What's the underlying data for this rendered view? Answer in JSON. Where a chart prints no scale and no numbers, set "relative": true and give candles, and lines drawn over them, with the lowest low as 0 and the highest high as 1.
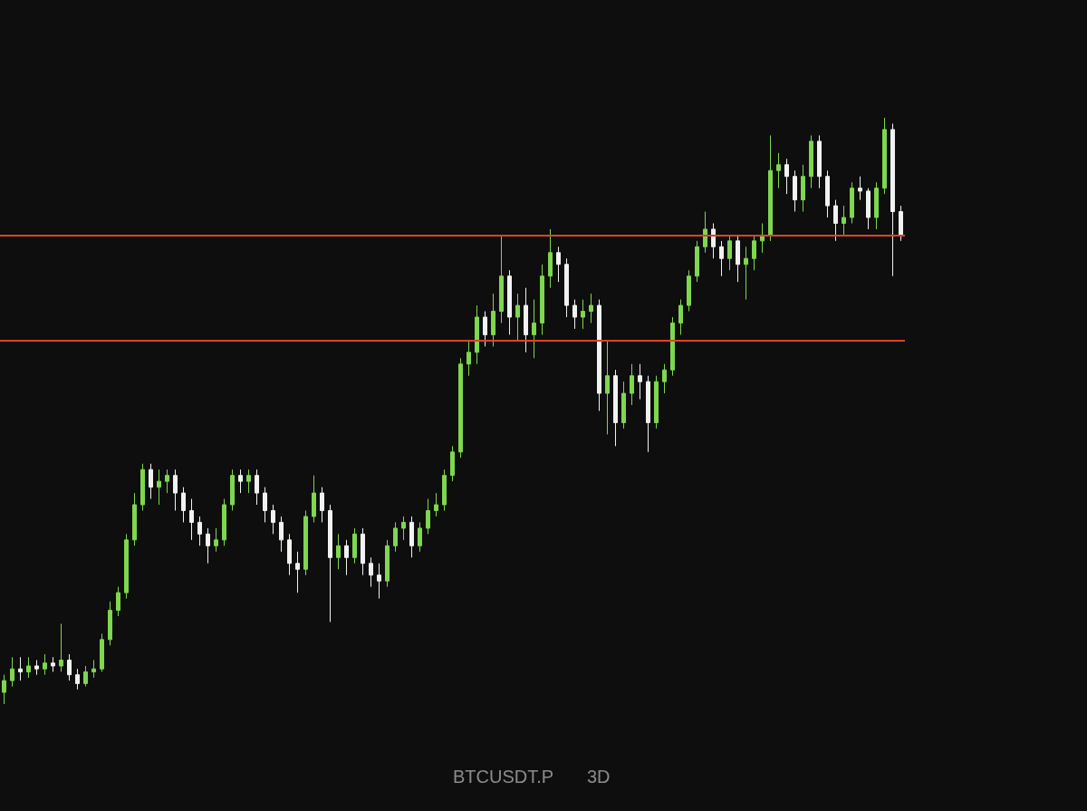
{
  "chart_data": {
    "type": "candlestick",
    "relative": true,
    "annotations": [
      "BTCUSDT.P",
      "3D"
    ],
    "categories": [
      null,
      null,
      null,
      null,
      null,
      null,
      null,
      null,
      null,
      null,
      null,
      null,
      null,
      null,
      null,
      null,
      null,
      null,
      null,
      null,
      null,
      null,
      null,
      null,
      null,
      null,
      null,
      null,
      null,
      null,
      null,
      null,
      null,
      null,
      null,
      null,
      null,
      null,
      null,
      null,
      null,
      null,
      null,
      null,
      null,
      null,
      null,
      null,
      null,
      null,
      null,
      null,
      null,
      null,
      null,
      null,
      null,
      null,
      null,
      null,
      null,
      null,
      null,
      null,
      null,
      null,
      null,
      null,
      null,
      null,
      null,
      null,
      null,
      null,
      null,
      null,
      null,
      null,
      null,
      null,
      null,
      null,
      null,
      null,
      null,
      null,
      null,
      null,
      null,
      null,
      null,
      null,
      null,
      null,
      null,
      null,
      null,
      null,
      null,
      null,
      null,
      null,
      null,
      null,
      null,
      null,
      null,
      null,
      null,
      null,
      null
    ],
    "ohlc": [
      [
        0.02,
        0.05,
        0,
        0.04
      ],
      [
        0.04,
        0.08,
        0.03,
        0.06
      ],
      [
        0.06,
        0.08,
        0.04,
        0.055
      ],
      [
        0.055,
        0.08,
        0.045,
        0.065
      ],
      [
        0.065,
        0.075,
        0.05,
        0.06
      ],
      [
        0.06,
        0.085,
        0.05,
        0.07
      ],
      [
        0.07,
        0.08,
        0.055,
        0.065
      ],
      [
        0.065,
        0.137,
        0.055,
        0.075
      ],
      [
        0.075,
        0.085,
        0.04,
        0.05
      ],
      [
        0.05,
        0.06,
        0.025,
        0.035
      ],
      [
        0.035,
        0.065,
        0.03,
        0.055
      ],
      [
        0.055,
        0.075,
        0.045,
        0.06
      ],
      [
        0.06,
        0.12,
        0.055,
        0.11
      ],
      [
        0.11,
        0.175,
        0.1,
        0.16
      ],
      [
        0.16,
        0.2,
        0.15,
        0.19
      ],
      [
        0.19,
        0.29,
        0.18,
        0.28
      ],
      [
        0.28,
        0.36,
        0.27,
        0.34
      ],
      [
        0.34,
        0.41,
        0.33,
        0.4
      ],
      [
        0.4,
        0.41,
        0.35,
        0.37
      ],
      [
        0.37,
        0.4,
        0.34,
        0.38
      ],
      [
        0.38,
        0.4,
        0.36,
        0.39
      ],
      [
        0.39,
        0.4,
        0.33,
        0.36
      ],
      [
        0.36,
        0.37,
        0.31,
        0.33
      ],
      [
        0.33,
        0.35,
        0.28,
        0.31
      ],
      [
        0.31,
        0.32,
        0.27,
        0.29
      ],
      [
        0.29,
        0.3,
        0.24,
        0.27
      ],
      [
        0.27,
        0.3,
        0.26,
        0.28
      ],
      [
        0.28,
        0.35,
        0.27,
        0.34
      ],
      [
        0.34,
        0.4,
        0.33,
        0.39
      ],
      [
        0.39,
        0.4,
        0.36,
        0.38
      ],
      [
        0.38,
        0.4,
        0.36,
        0.39
      ],
      [
        0.39,
        0.4,
        0.34,
        0.36
      ],
      [
        0.36,
        0.37,
        0.31,
        0.33
      ],
      [
        0.33,
        0.34,
        0.29,
        0.31
      ],
      [
        0.31,
        0.32,
        0.26,
        0.28
      ],
      [
        0.28,
        0.29,
        0.22,
        0.24
      ],
      [
        0.24,
        0.26,
        0.19,
        0.23
      ],
      [
        0.23,
        0.33,
        0.22,
        0.32
      ],
      [
        0.32,
        0.39,
        0.31,
        0.36
      ],
      [
        0.36,
        0.37,
        0.31,
        0.33
      ],
      [
        0.33,
        0.34,
        0.14,
        0.25
      ],
      [
        0.25,
        0.29,
        0.23,
        0.27
      ],
      [
        0.27,
        0.28,
        0.22,
        0.25
      ],
      [
        0.25,
        0.3,
        0.24,
        0.29
      ],
      [
        0.29,
        0.3,
        0.22,
        0.24
      ],
      [
        0.24,
        0.25,
        0.2,
        0.22
      ],
      [
        0.22,
        0.24,
        0.18,
        0.21
      ],
      [
        0.21,
        0.28,
        0.2,
        0.27
      ],
      [
        0.27,
        0.31,
        0.26,
        0.3
      ],
      [
        0.3,
        0.32,
        0.28,
        0.31
      ],
      [
        0.31,
        0.32,
        0.25,
        0.27
      ],
      [
        0.27,
        0.31,
        0.26,
        0.3
      ],
      [
        0.3,
        0.35,
        0.29,
        0.33
      ],
      [
        0.33,
        0.36,
        0.32,
        0.34
      ],
      [
        0.34,
        0.4,
        0.33,
        0.39
      ],
      [
        0.39,
        0.44,
        0.38,
        0.43
      ],
      [
        0.43,
        0.59,
        0.42,
        0.58
      ],
      [
        0.58,
        0.62,
        0.56,
        0.6
      ],
      [
        0.6,
        0.68,
        0.58,
        0.66
      ],
      [
        0.66,
        0.67,
        0.61,
        0.63
      ],
      [
        0.63,
        0.7,
        0.61,
        0.67
      ],
      [
        0.67,
        0.8,
        0.65,
        0.73
      ],
      [
        0.73,
        0.74,
        0.63,
        0.66
      ],
      [
        0.66,
        0.7,
        0.62,
        0.68
      ],
      [
        0.68,
        0.71,
        0.6,
        0.63
      ],
      [
        0.63,
        0.69,
        0.59,
        0.65
      ],
      [
        0.65,
        0.75,
        0.63,
        0.73
      ],
      [
        0.73,
        0.81,
        0.71,
        0.77
      ],
      [
        0.77,
        0.78,
        0.72,
        0.75
      ],
      [
        0.75,
        0.76,
        0.66,
        0.68
      ],
      [
        0.68,
        0.69,
        0.64,
        0.66
      ],
      [
        0.66,
        0.69,
        0.64,
        0.67
      ],
      [
        0.67,
        0.7,
        0.65,
        0.68
      ],
      [
        0.68,
        0.69,
        0.5,
        0.53
      ],
      [
        0.53,
        0.62,
        0.46,
        0.56
      ],
      [
        0.56,
        0.57,
        0.44,
        0.48
      ],
      [
        0.48,
        0.55,
        0.47,
        0.53
      ],
      [
        0.53,
        0.58,
        0.51,
        0.56
      ],
      [
        0.56,
        0.58,
        0.52,
        0.55
      ],
      [
        0.55,
        0.56,
        0.43,
        0.48
      ],
      [
        0.48,
        0.56,
        0.47,
        0.55
      ],
      [
        0.55,
        0.58,
        0.53,
        0.57
      ],
      [
        0.57,
        0.66,
        0.56,
        0.65
      ],
      [
        0.65,
        0.69,
        0.63,
        0.68
      ],
      [
        0.68,
        0.74,
        0.67,
        0.73
      ],
      [
        0.73,
        0.79,
        0.72,
        0.78
      ],
      [
        0.78,
        0.84,
        0.77,
        0.81
      ],
      [
        0.81,
        0.82,
        0.76,
        0.78
      ],
      [
        0.78,
        0.79,
        0.73,
        0.76
      ],
      [
        0.76,
        0.8,
        0.74,
        0.79
      ],
      [
        0.79,
        0.8,
        0.72,
        0.75
      ],
      [
        0.75,
        0.78,
        0.69,
        0.76
      ],
      [
        0.76,
        0.8,
        0.74,
        0.79
      ],
      [
        0.79,
        0.82,
        0.77,
        0.8
      ],
      [
        0.8,
        0.97,
        0.79,
        0.91
      ],
      [
        0.91,
        0.94,
        0.88,
        0.92
      ],
      [
        0.92,
        0.93,
        0.87,
        0.9
      ],
      [
        0.9,
        0.91,
        0.84,
        0.86
      ],
      [
        0.86,
        0.92,
        0.84,
        0.9
      ],
      [
        0.9,
        0.97,
        0.88,
        0.96
      ],
      [
        0.96,
        0.97,
        0.88,
        0.9
      ],
      [
        0.9,
        0.91,
        0.83,
        0.85
      ],
      [
        0.85,
        0.86,
        0.79,
        0.82
      ],
      [
        0.82,
        0.85,
        0.8,
        0.83
      ],
      [
        0.83,
        0.89,
        0.82,
        0.88
      ],
      [
        0.88,
        0.9,
        0.86,
        0.875
      ],
      [
        0.875,
        0.88,
        0.81,
        0.83
      ],
      [
        0.83,
        0.89,
        0.81,
        0.88
      ],
      [
        0.88,
        1,
        0.87,
        0.98
      ],
      [
        0.98,
        0.99,
        0.73,
        0.84
      ],
      [
        0.84,
        0.85,
        0.79,
        0.8
      ]
    ],
    "ref_lines": [
      {
        "axis": "y",
        "value": 0.62,
        "color": "#e0412a"
      },
      {
        "axis": "y",
        "value": 0.8,
        "color": "#e0412a"
      }
    ]
  }
}
